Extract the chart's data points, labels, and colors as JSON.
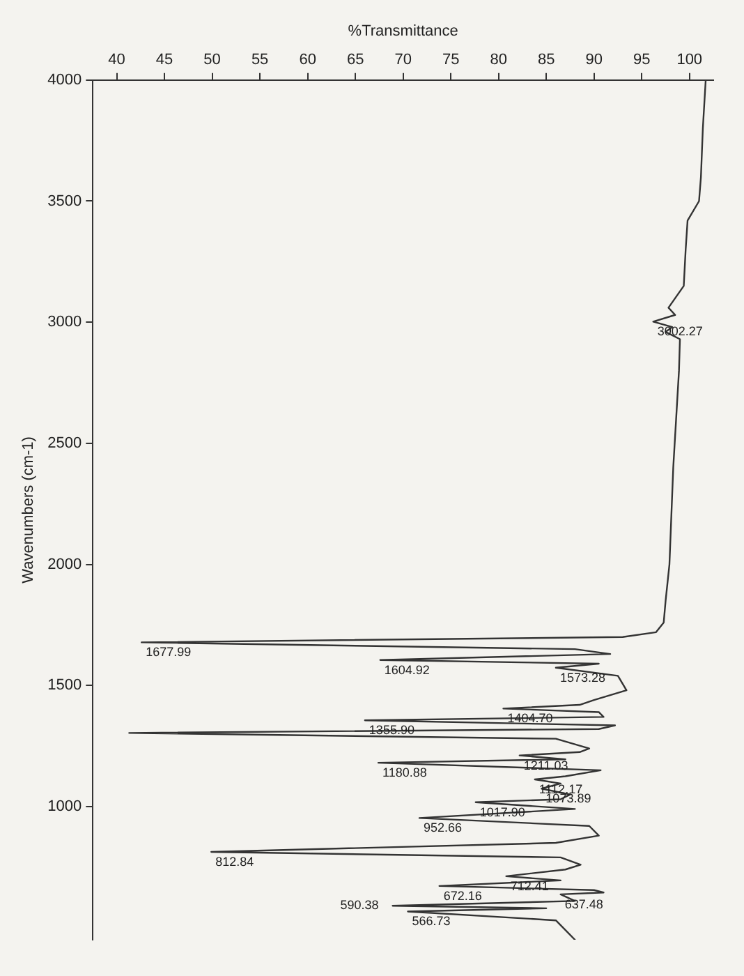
{
  "chart_data": {
    "type": "line",
    "xlabel": "%Transmittance",
    "ylabel": "Wavenumbers (cm-1)",
    "xlim": [
      37.5,
      102.5
    ],
    "ylim": [
      450,
      4000
    ],
    "xticks": [
      40,
      45,
      50,
      55,
      60,
      65,
      70,
      75,
      80,
      85,
      90,
      95,
      100
    ],
    "yticks": [
      4000,
      3500,
      3000,
      2500,
      2000,
      1500,
      1000
    ],
    "series": [
      {
        "color": "#333333",
        "x": [
          101.7,
          101.4,
          101.2,
          101,
          99.8,
          99.6,
          99.4,
          97.8,
          98.5,
          96.2,
          98.2,
          97.5,
          99,
          98.9,
          98.6,
          98.3,
          98.1,
          97.9,
          97.5,
          97.3,
          96.5,
          93,
          42.6,
          88,
          91.7,
          67.6,
          90.5,
          86,
          92.5,
          93.4,
          90,
          88.5,
          80.5,
          90.5,
          91,
          66,
          92.2,
          90.5,
          41.3,
          86,
          89.5,
          88.5,
          82.2,
          87,
          67.4,
          90.7,
          87,
          83.8,
          86.5,
          84.5,
          87.5,
          86.5,
          77.6,
          88,
          71.7,
          89.5,
          90.5,
          86,
          49.9,
          86.5,
          88.6,
          87,
          80.8,
          86.5,
          73.8,
          90,
          91,
          86.5,
          88,
          68.9,
          85,
          70.5,
          86,
          88
        ],
        "values": [
          4000,
          3800,
          3600,
          3500,
          3420,
          3300,
          3150,
          3060,
          3030,
          3002.27,
          2980,
          2960,
          2930,
          2800,
          2600,
          2400,
          2200,
          2000,
          1850,
          1760,
          1720,
          1700,
          1677.99,
          1650,
          1630,
          1604.92,
          1590,
          1573.28,
          1540,
          1480,
          1440,
          1420,
          1404.7,
          1390,
          1370,
          1355.9,
          1335,
          1320,
          1304,
          1280,
          1240,
          1225,
          1211.03,
          1195,
          1180.88,
          1150,
          1125,
          1112.17,
          1095,
          1073.89,
          1050,
          1030,
          1017.9,
          990,
          952.66,
          920,
          880,
          850,
          812.84,
          790,
          760,
          740,
          712.41,
          695,
          672.16,
          655,
          645,
          637.48,
          610,
          590.38,
          580,
          566.73,
          530,
          450
        ]
      }
    ],
    "annotations": [
      {
        "text": "3002.27",
        "x": 96.2,
        "y": 3002.27
      },
      {
        "text": "1677.99",
        "x": 42.6,
        "y": 1677.99
      },
      {
        "text": "1604.92",
        "x": 67.6,
        "y": 1604.92
      },
      {
        "text": "1573.28",
        "x": 86,
        "y": 1573.28
      },
      {
        "text": "1404.70",
        "x": 80.5,
        "y": 1404.7
      },
      {
        "text": "1355.90",
        "x": 66,
        "y": 1355.9
      },
      {
        "text": "1211.03",
        "x": 82.2,
        "y": 1211.03
      },
      {
        "text": "1180.88",
        "x": 67.4,
        "y": 1180.88
      },
      {
        "text": "1112.17",
        "x": 83.8,
        "y": 1112.17
      },
      {
        "text": "1073.89",
        "x": 84.5,
        "y": 1073.89
      },
      {
        "text": "1017.90",
        "x": 77.6,
        "y": 1017.9
      },
      {
        "text": "952.66",
        "x": 71.7,
        "y": 952.66
      },
      {
        "text": "812.84",
        "x": 49.9,
        "y": 812.84
      },
      {
        "text": "712.41",
        "x": 80.8,
        "y": 712.41
      },
      {
        "text": "672.16",
        "x": 73.8,
        "y": 672.16
      },
      {
        "text": "637.48",
        "x": 86.5,
        "y": 637.48
      },
      {
        "text": "590.38",
        "x": 68.9,
        "y": 590.38
      },
      {
        "text": "566.73",
        "x": 70.5,
        "y": 566.73
      }
    ]
  }
}
